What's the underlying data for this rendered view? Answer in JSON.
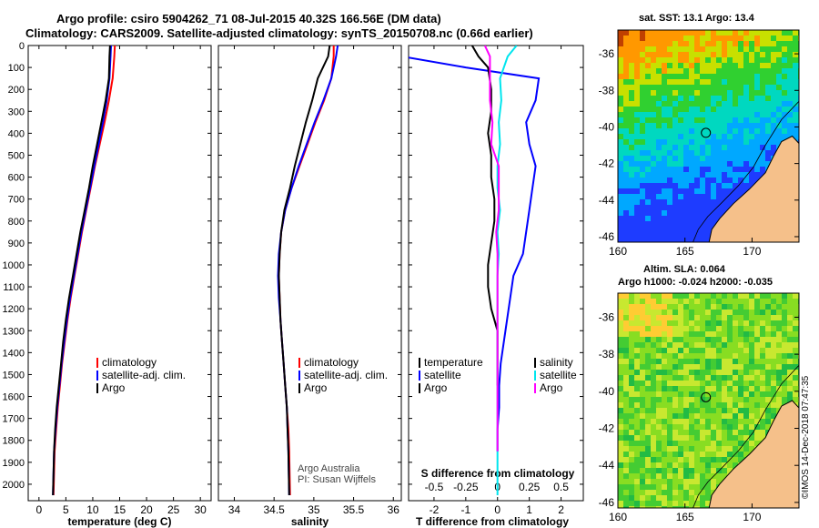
{
  "header": {
    "line1": "Argo profile: csiro 5904262_71 08-Jul-2015 40.32S 166.56E (DM data)",
    "line2": "Climatology: CARS2009. Satellite-adjusted climatology: synTS_20150708.nc (0.66d earlier)"
  },
  "stamp": "©IMOS 14-Dec-2018 07:47:35",
  "colors": {
    "climatology": "#ff0000",
    "satellite": "#0000ff",
    "argo": "#000000",
    "sat_salinity": "#00e5ee",
    "argo_salinity": "#ff00ff",
    "land": "#f5c08a"
  },
  "chart_data": [
    {
      "type": "line",
      "id": "temperature",
      "xlabel": "temperature (deg C)",
      "xticks": [
        "0",
        "5",
        "10",
        "15",
        "20",
        "25",
        "30"
      ],
      "xlim": [
        -2,
        32
      ],
      "ylim": [
        2075,
        0
      ],
      "yticks": [
        "0",
        "100",
        "200",
        "300",
        "400",
        "500",
        "600",
        "700",
        "800",
        "900",
        "1000",
        "1100",
        "1200",
        "1300",
        "1400",
        "1500",
        "1600",
        "1700",
        "1800",
        "1900",
        "2000"
      ],
      "legend": [
        "climatology",
        "satellite-adj. clim.",
        "Argo"
      ],
      "series": [
        {
          "name": "climatology",
          "color": "#ff0000",
          "x": [
            14.1,
            14.0,
            13.7,
            13.0,
            12.2,
            11.3,
            10.4,
            9.6,
            8.8,
            8.0,
            7.3,
            6.6,
            5.9,
            5.3,
            4.8,
            4.3,
            3.9,
            3.5,
            3.2,
            2.9,
            2.7
          ],
          "y": [
            0,
            50,
            150,
            250,
            350,
            450,
            550,
            650,
            750,
            850,
            950,
            1050,
            1150,
            1250,
            1350,
            1450,
            1550,
            1650,
            1750,
            1850,
            2050
          ]
        },
        {
          "name": "satellite-adj. clim.",
          "color": "#0000ff",
          "x": [
            13.4,
            13.3,
            13.1,
            12.6,
            11.9,
            11.1,
            10.3,
            9.5,
            8.7,
            7.9,
            7.2,
            6.5,
            5.8,
            5.2,
            4.7,
            4.2,
            3.8,
            3.4,
            3.1,
            2.8,
            2.6
          ],
          "y": [
            0,
            50,
            150,
            250,
            350,
            450,
            550,
            650,
            750,
            850,
            950,
            1050,
            1150,
            1250,
            1350,
            1450,
            1550,
            1650,
            1750,
            1850,
            2050
          ]
        },
        {
          "name": "Argo",
          "color": "#000000",
          "x": [
            13.2,
            13.1,
            13.0,
            12.4,
            11.6,
            10.8,
            10.0,
            9.3,
            8.5,
            7.7,
            7.0,
            6.3,
            5.6,
            5.0,
            4.5,
            4.1,
            3.7,
            3.3,
            3.0,
            2.8,
            2.6
          ],
          "y": [
            0,
            50,
            150,
            250,
            350,
            450,
            550,
            650,
            750,
            850,
            950,
            1050,
            1150,
            1250,
            1350,
            1450,
            1550,
            1650,
            1750,
            1850,
            2050
          ]
        }
      ]
    },
    {
      "type": "line",
      "id": "salinity",
      "xlabel": "salinity",
      "xticks": [
        "34",
        "34.5",
        "35",
        "35.5",
        "36"
      ],
      "xlim": [
        33.8,
        36.1
      ],
      "ylim": [
        2075,
        0
      ],
      "legend": [
        "climatology",
        "satellite-adj. clim.",
        "Argo"
      ],
      "annotation": [
        "Argo Australia",
        "PI: Susan Wijffels"
      ],
      "series": [
        {
          "name": "climatology",
          "color": "#ff0000",
          "x": [
            35.25,
            35.25,
            35.22,
            35.13,
            35.02,
            34.92,
            34.82,
            34.72,
            34.64,
            34.59,
            34.57,
            34.56,
            34.57,
            34.58,
            34.6,
            34.62,
            34.64,
            34.66,
            34.68,
            34.69,
            34.7
          ],
          "y": [
            0,
            50,
            150,
            250,
            350,
            450,
            550,
            650,
            750,
            850,
            950,
            1050,
            1150,
            1250,
            1350,
            1450,
            1550,
            1650,
            1750,
            1850,
            2050
          ]
        },
        {
          "name": "satellite-adj. clim.",
          "color": "#0000ff",
          "x": [
            35.3,
            35.28,
            35.22,
            35.12,
            35.01,
            34.91,
            34.81,
            34.72,
            34.64,
            34.59,
            34.56,
            34.55,
            34.56,
            34.58,
            34.6,
            34.62,
            34.64,
            34.66,
            34.67,
            34.68,
            34.69
          ],
          "y": [
            0,
            50,
            150,
            250,
            350,
            450,
            550,
            650,
            750,
            850,
            950,
            1050,
            1150,
            1250,
            1350,
            1450,
            1550,
            1650,
            1750,
            1850,
            2050
          ]
        },
        {
          "name": "Argo",
          "color": "#000000",
          "x": [
            35.2,
            35.18,
            35.05,
            34.98,
            34.9,
            34.83,
            34.76,
            34.7,
            34.63,
            34.59,
            34.57,
            34.56,
            34.57,
            34.58,
            34.6,
            34.62,
            34.64,
            34.66,
            34.67,
            34.68,
            34.69
          ],
          "y": [
            0,
            50,
            150,
            250,
            350,
            450,
            550,
            650,
            750,
            850,
            950,
            1050,
            1150,
            1250,
            1350,
            1450,
            1550,
            1650,
            1750,
            1850,
            2050
          ]
        }
      ]
    },
    {
      "type": "line",
      "id": "difference",
      "xlabel": "T difference from climatology",
      "xticks": [
        "-2",
        "-1",
        "0",
        "1",
        "2"
      ],
      "xlim": [
        -2.8,
        2.7
      ],
      "ylim": [
        2075,
        0
      ],
      "top_label": "S difference from climatology",
      "top_ticks": [
        "-0.5",
        "-0.25",
        "0",
        "0.25",
        "0.5"
      ],
      "top_xlim": [
        -0.7,
        0.675
      ],
      "legend_left": [
        "temperature",
        "satellite",
        "Argo"
      ],
      "legend_right": [
        "salinity",
        "satellite",
        "Argo"
      ],
      "series": [
        {
          "name": "T satellite",
          "color": "#0000ff",
          "x": [
            -3.2,
            -3.0,
            -1.0,
            1.3,
            1.2,
            0.9,
            1.0,
            1.2,
            1.1,
            1.0,
            0.9,
            0.8,
            0.5,
            0.4,
            0.3,
            0.2,
            0.1,
            0.05,
            0.05,
            0.0,
            0.0
          ],
          "y": [
            0,
            50,
            100,
            150,
            250,
            350,
            450,
            550,
            650,
            750,
            850,
            950,
            1050,
            1150,
            1250,
            1350,
            1450,
            1550,
            1650,
            1750,
            1850
          ]
        },
        {
          "name": "T Argo",
          "color": "#000000",
          "x": [
            -0.8,
            -0.6,
            -0.3,
            -0.2,
            -0.2,
            -0.3,
            -0.2,
            -0.2,
            -0.1,
            -0.1,
            -0.2,
            -0.3,
            -0.3,
            -0.2,
            0.0,
            0.0,
            0.0
          ],
          "y": [
            0,
            50,
            100,
            200,
            300,
            400,
            500,
            600,
            700,
            800,
            900,
            1000,
            1100,
            1200,
            1300,
            1400,
            1550
          ]
        },
        {
          "name": "S satellite",
          "color": "#00e5ee",
          "x": [
            0.15,
            0.08,
            0.02,
            0.03,
            0.01,
            0.02,
            0.0,
            0.0,
            0.02,
            0.0,
            0.01,
            0.0,
            0.0,
            0.0,
            0.0,
            0.0,
            0.0,
            0.0,
            0.0,
            0.0,
            0.0
          ],
          "y": [
            0,
            50,
            150,
            250,
            350,
            450,
            550,
            650,
            750,
            850,
            950,
            1050,
            1150,
            1250,
            1350,
            1450,
            1550,
            1650,
            1750,
            1850,
            2050
          ]
        },
        {
          "name": "S Argo",
          "color": "#ff00ff",
          "x": [
            -0.1,
            -0.06,
            -0.06,
            -0.06,
            -0.04,
            -0.05,
            0.01,
            0.01,
            0.01,
            -0.01,
            0.0,
            0.0,
            0.0,
            0.0,
            0.0,
            0.0,
            0.0,
            0.0,
            0.0,
            0.0
          ],
          "y": [
            0,
            50,
            150,
            250,
            350,
            450,
            550,
            650,
            750,
            850,
            950,
            1050,
            1150,
            1250,
            1350,
            1450,
            1550,
            1650,
            1750,
            1850
          ]
        }
      ]
    },
    {
      "type": "heatmap",
      "id": "sst-map",
      "title": "sat. SST: 13.1 Argo: 13.4",
      "xticks": [
        "160",
        "165",
        "170"
      ],
      "xlim": [
        160,
        173.5
      ],
      "yticks": [
        "-36",
        "-38",
        "-40",
        "-42",
        "-44",
        "-46"
      ],
      "ylim": [
        -46.3,
        -34.7
      ],
      "marker": {
        "lon": 166.56,
        "lat": -40.32
      }
    },
    {
      "type": "heatmap",
      "id": "sla-map",
      "title_line1": "Altim. SLA: 0.064",
      "title_line2": "Argo h1000: -0.024 h2000: -0.035",
      "xticks": [
        "160",
        "165",
        "170"
      ],
      "xlim": [
        160,
        173.5
      ],
      "yticks": [
        "-36",
        "-38",
        "-40",
        "-42",
        "-44",
        "-46"
      ],
      "ylim": [
        -46.3,
        -34.7
      ],
      "marker": {
        "lon": 166.56,
        "lat": -40.32
      }
    }
  ]
}
